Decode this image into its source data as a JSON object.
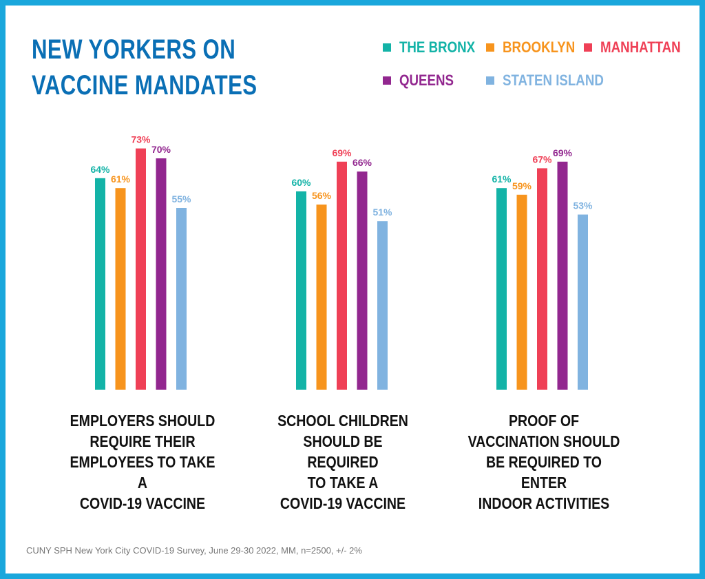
{
  "title_line1": "NEW YORKERS ON",
  "title_line2": "VACCINE MANDATES",
  "footer": "CUNY SPH New York City COVID-19 Survey, June 29-30 2022, MM, n=2500, +/- 2%",
  "legend": [
    {
      "name": "THE BRONX",
      "color": "#13b3a7"
    },
    {
      "name": "BROOKLYN",
      "color": "#f7941d"
    },
    {
      "name": "MANHATTAN",
      "color": "#ef4056"
    },
    {
      "name": "QUEENS",
      "color": "#92278f"
    },
    {
      "name": "STATEN ISLAND",
      "color": "#80b3e0"
    }
  ],
  "chart_data": {
    "type": "bar",
    "title": "NEW YORKERS ON VACCINE MANDATES",
    "categories": [
      "EMPLOYERS SHOULD REQUIRE THEIR EMPLOYEES TO TAKE A COVID-19 VACCINE",
      "SCHOOL CHILDREN SHOULD BE REQUIRED TO TAKE A COVID-19 VACCINE",
      "PROOF OF VACCINATION SHOULD BE REQUIRED TO ENTER INDOOR ACTIVITIES"
    ],
    "category_lines": [
      [
        "EMPLOYERS SHOULD",
        "REQUIRE THEIR",
        "EMPLOYEES TO TAKE A",
        "COVID-19 VACCINE"
      ],
      [
        "SCHOOL CHILDREN",
        "SHOULD BE REQUIRED",
        "TO TAKE A",
        "COVID-19 VACCINE"
      ],
      [
        "PROOF OF",
        "VACCINATION SHOULD",
        "BE REQUIRED TO ENTER",
        "INDOOR ACTIVITIES"
      ]
    ],
    "series": [
      {
        "name": "THE BRONX",
        "values": [
          64,
          60,
          61
        ]
      },
      {
        "name": "BROOKLYN",
        "values": [
          61,
          56,
          59
        ]
      },
      {
        "name": "MANHATTAN",
        "values": [
          73,
          69,
          67
        ]
      },
      {
        "name": "QUEENS",
        "values": [
          70,
          66,
          69
        ]
      },
      {
        "name": "STATEN ISLAND",
        "values": [
          55,
          51,
          53
        ]
      }
    ],
    "value_suffix": "%",
    "ylim": [
      0,
      100
    ],
    "grid": false,
    "legend_position": "top-right"
  }
}
